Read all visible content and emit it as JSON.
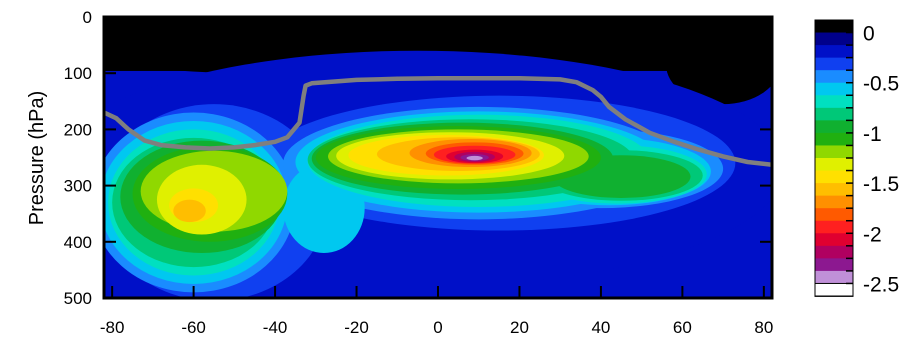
{
  "chart_data": {
    "type": "heatmap",
    "title": "",
    "xlabel": "",
    "ylabel": "Pressure (hPa)",
    "xlim": [
      -82,
      82
    ],
    "ylim": [
      500,
      0
    ],
    "x_ticks": [
      -80,
      -60,
      -40,
      -20,
      0,
      20,
      40,
      60,
      80
    ],
    "y_ticks": [
      0,
      100,
      200,
      300,
      400,
      500
    ],
    "colorbar": {
      "levels": [
        0,
        -0.125,
        -0.25,
        -0.375,
        -0.5,
        -0.625,
        -0.75,
        -0.875,
        -1,
        -1.125,
        -1.25,
        -1.375,
        -1.5,
        -1.625,
        -1.75,
        -1.875,
        -2,
        -2.125,
        -2.25,
        -2.375,
        -2.5
      ],
      "colors": [
        "#000000",
        "#00008b",
        "#0010c8",
        "#1040f0",
        "#1a8cff",
        "#00c8f0",
        "#00e0c0",
        "#00c878",
        "#10b030",
        "#20b010",
        "#90d800",
        "#e0f000",
        "#ffe000",
        "#ffbe00",
        "#ff9000",
        "#ff5a00",
        "#ff2020",
        "#e00030",
        "#b00060",
        "#8c1890",
        "#c090d8",
        "#ffffff"
      ],
      "tick_labels": [
        "0",
        "-0.5",
        "-1",
        "-1.5",
        "-2",
        "-2.5"
      ]
    },
    "tropopause_line": {
      "color": "#7f7f7f",
      "x": [
        -82,
        -79,
        -76,
        -72,
        -68,
        -62,
        -56,
        -50,
        -45,
        -40,
        -37,
        -34,
        -33,
        -32.5,
        -31,
        -20,
        -10,
        0,
        10,
        20,
        30,
        34,
        38,
        40,
        42,
        46,
        52,
        58,
        64,
        70,
        76,
        82
      ],
      "p": [
        170,
        180,
        200,
        220,
        228,
        232,
        234,
        232,
        228,
        222,
        214,
        188,
        140,
        122,
        118,
        112,
        110,
        109,
        109,
        109,
        111,
        116,
        130,
        142,
        160,
        182,
        206,
        222,
        236,
        248,
        258,
        263
      ]
    }
  }
}
